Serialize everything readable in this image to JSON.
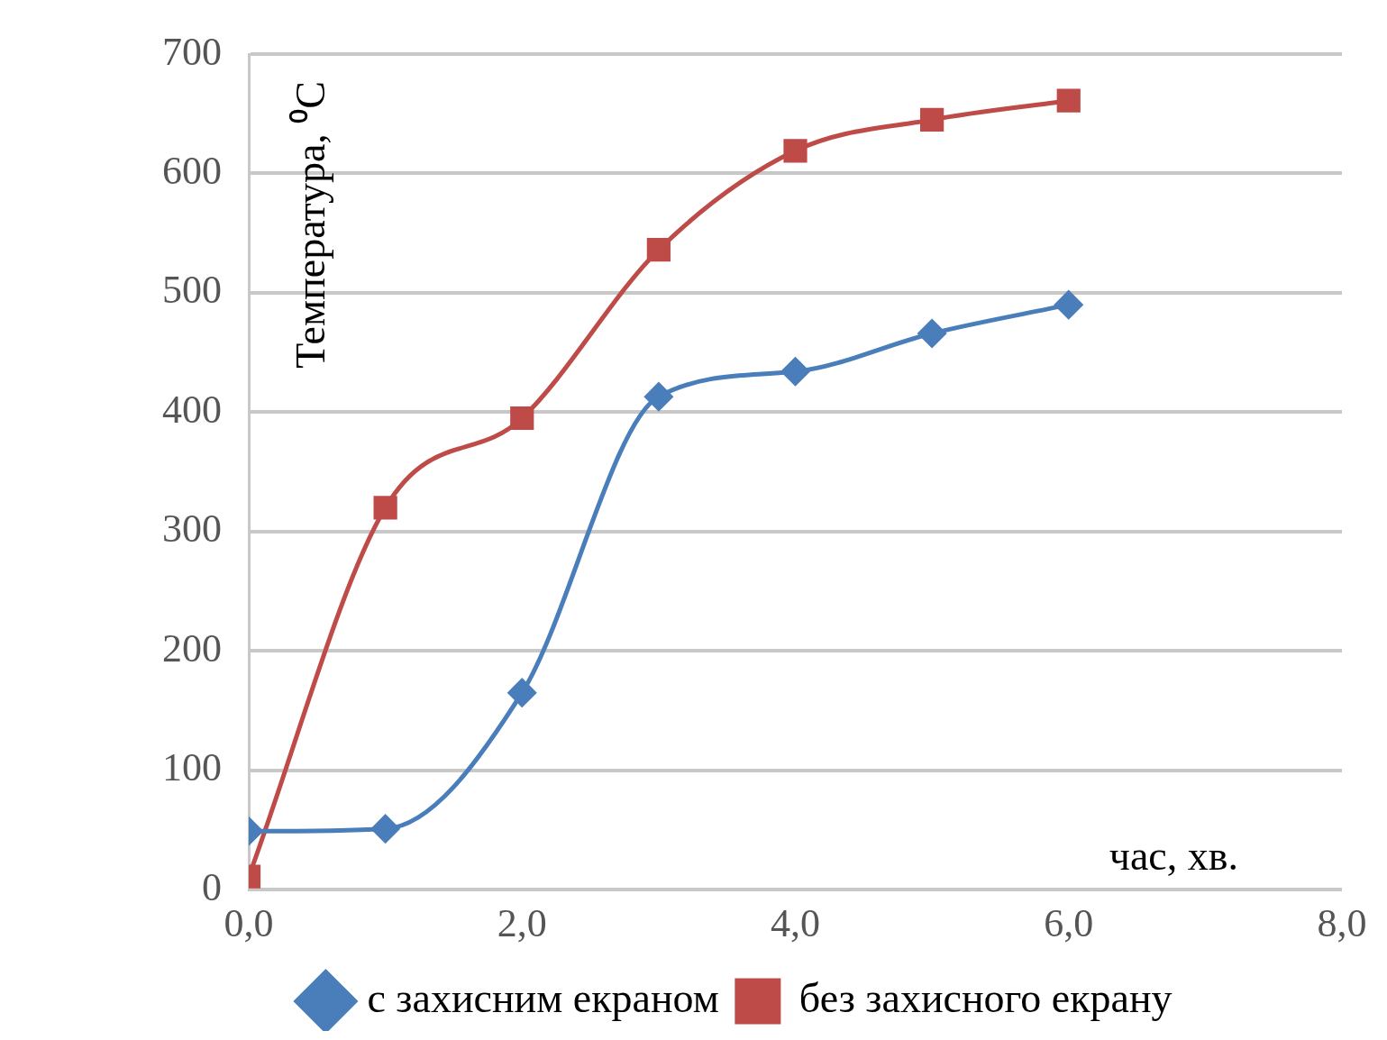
{
  "chart_data": {
    "type": "line",
    "xlabel": "час, хв.",
    "ylabel": "Температура, ⁰C",
    "x": [
      0,
      1,
      2,
      3,
      4,
      5,
      6
    ],
    "series": [
      {
        "name": "с захисним екраном",
        "color": "#4a7ebb",
        "marker": "diamond",
        "values": [
          49,
          51,
          165,
          413,
          434,
          466,
          490
        ]
      },
      {
        "name": "без захисного екрану",
        "color": "#be4b48",
        "marker": "square",
        "values": [
          11,
          320,
          395,
          536,
          619,
          645,
          661
        ]
      }
    ],
    "xlim": [
      0,
      8
    ],
    "xticks": [
      {
        "value": 0,
        "label": "0,0"
      },
      {
        "value": 2,
        "label": "2,0"
      },
      {
        "value": 4,
        "label": "4,0"
      },
      {
        "value": 6,
        "label": "6,0"
      },
      {
        "value": 8,
        "label": "8,0"
      }
    ],
    "ylim": [
      0,
      700
    ],
    "yticks": [
      0,
      100,
      200,
      300,
      400,
      500,
      600,
      700
    ],
    "grid": "y",
    "legend": "bottom",
    "line_style": "solid"
  }
}
